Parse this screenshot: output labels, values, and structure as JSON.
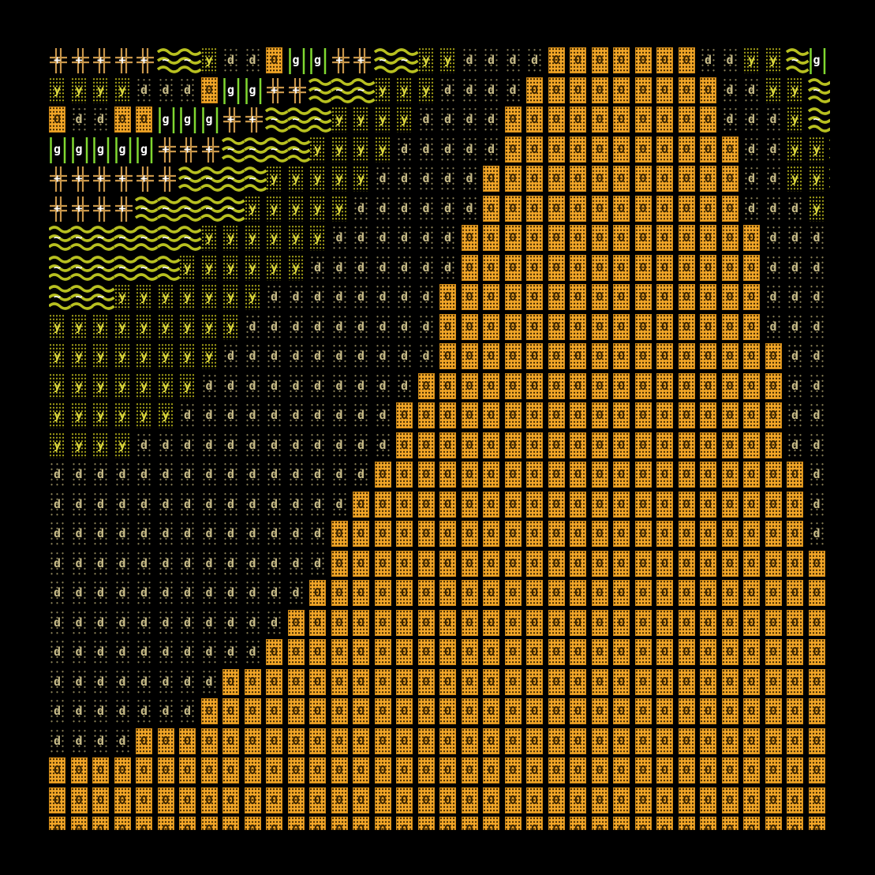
{
  "map": {
    "rows": [
      "+++++~~yddOgg++~~yyddddOOOOOOOddyy~gd",
      "yyyydddOgg++~~~yyyddddOOOOOOOOOddyy~g",
      "OddOOggg++~~~yyyyddddOOOOOOOOOOdddy~d",
      "ggggg+++~~~~yyyydddddOOOOOOOOOOOddyy~",
      "++++++~~~~yyyyydddddOOOOOOOOOOOOddyy~",
      "++++~~~~~yyyyyddddddOOOOOOOOOOOOdddyy",
      "~~~~~~~yyyyyyddddddOOOOOOOOOOOOOOdddy",
      "~~~~~~yyyyyydddddddOOOOOOOOOOOOOOdddy",
      "~~~yyyyyyyddddddddOOOOOOOOOOOOOOOdddy",
      "yyyyyyyyydddddddddOOOOOOOOOOOOOOOdddd",
      "yyyyyyyyddddddddddOOOOOOOOOOOOOOOOddd",
      "yyyyyyyddddddddddOOOOOOOOOOOOOOOOOddd",
      "yyyyyyddddddddddOOOOOOOOOOOOOOOOOOddd",
      "yyyyddddddddddddOOOOOOOOOOOOOOOOOOddd",
      "dddddddddddddddOOOOOOOOOOOOOOOOOOOOdd",
      "ddddddddddddddOOOOOOOOOOOOOOOOOOOOOdd",
      "dddddddddddddOOOOOOOOOOOOOOOOOOOOOOdd",
      "dddddddddddddOOOOOOOOOOOOOOOOOOOOOOOd",
      "ddddddddddddOOOOOOOOOOOOOOOOOOOOOOOOd",
      "dddddddddddOOOOOOOOOOOOOOOOOOOOOOOOOd",
      "ddddddddddOOOOOOOOOOOOOOOOOOOOOOOOOOd",
      "ddddddddOOOOOOOOOOOOOOOOOOOOOOOOOOOOO",
      "dddddddOOOOOOOOOOOOOOOOOOOOOOOOOOOOOO",
      "ddddOOOOOOOOOOOOOOOOOOOOOOOOOOOOOOOOO",
      "OOOOOOOOOOOOOOOOOOOOOOOOOOOOOOOOOOOOO",
      "OOOOOOOOOOOOOOOOOOOOOOOOOOOOOOOOOOOOO",
      "OOOOOOOOOOOOOOOOOOOOOOOOOOOOOOOOOOOOO"
    ],
    "legend": {
      "O": {
        "name": "orange-dotted-block-tile",
        "color": "#f2a628"
      },
      "d": {
        "name": "sparse-dark-dots-tile",
        "color": "#8c8258"
      },
      "y": {
        "name": "yellow-dots-tile",
        "color": "#a8a418"
      },
      "g": {
        "name": "green-bars-tile",
        "color": "#80d830"
      },
      "+": {
        "name": "double-cross-tile",
        "color": "#c8964a"
      },
      "~": {
        "name": "wave-tile",
        "color": "#b8c020"
      }
    },
    "background": "#000000"
  }
}
